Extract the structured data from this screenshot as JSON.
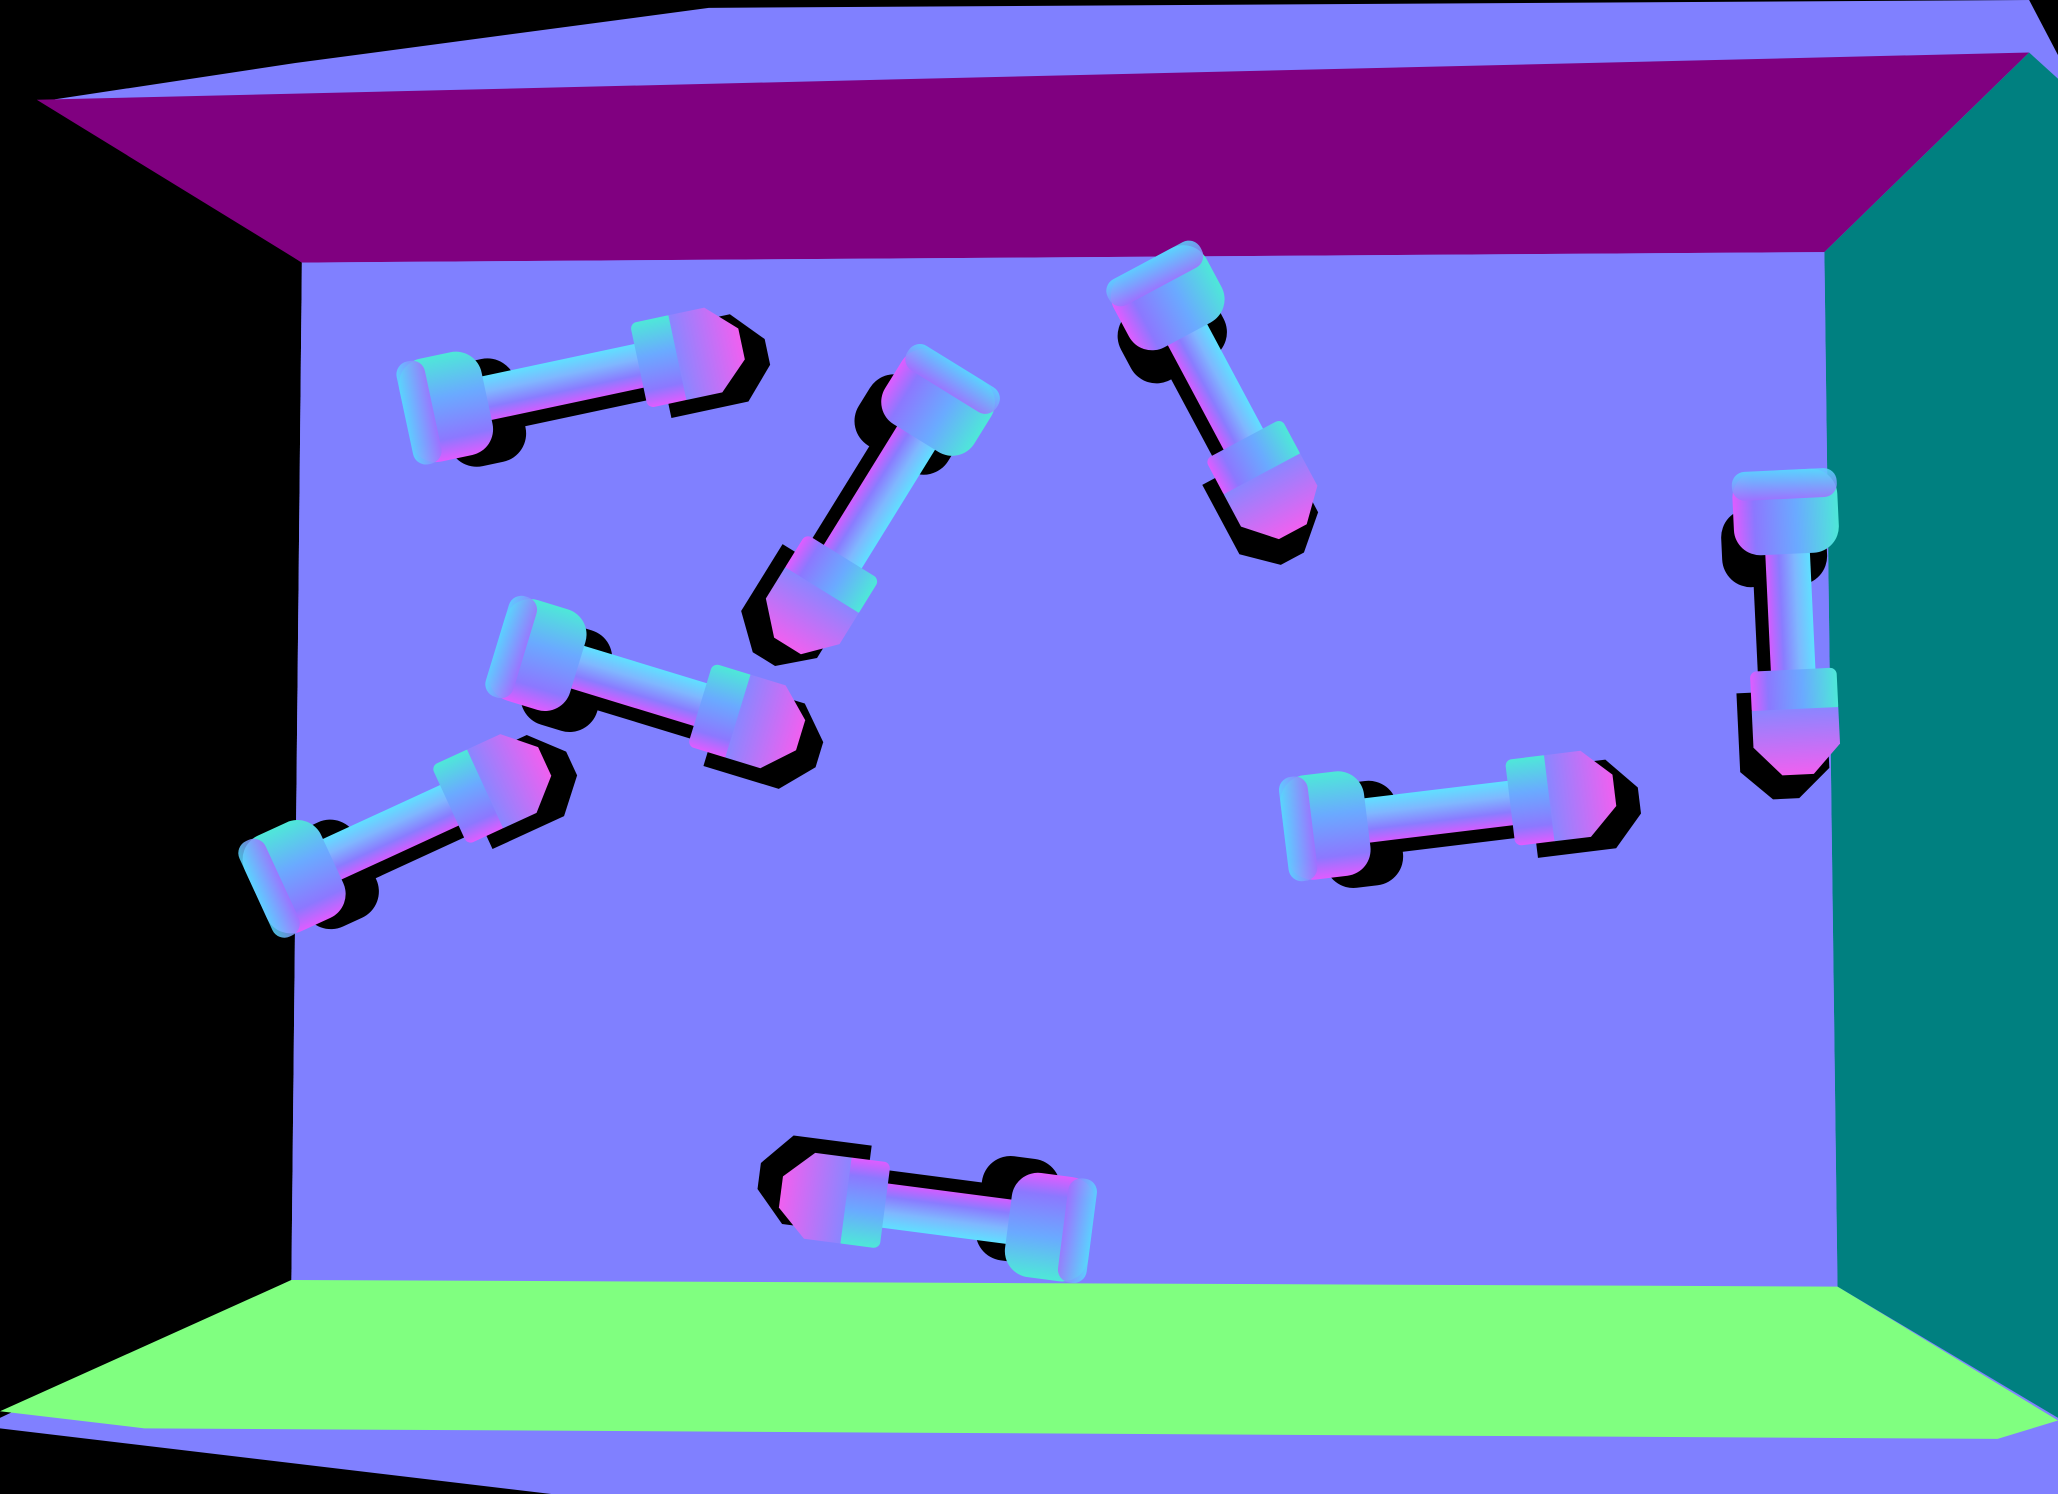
{
  "colors": {
    "background": "#000000",
    "back_wall": "#8080ff",
    "ceiling": "#800080",
    "floor": "#80ff80",
    "right_wall": "#008080",
    "left_wall": "#000000",
    "outer_band": "#8080ff",
    "shadow": "#000000"
  },
  "scene": {
    "object_count": 8,
    "object_type": "bolt"
  }
}
